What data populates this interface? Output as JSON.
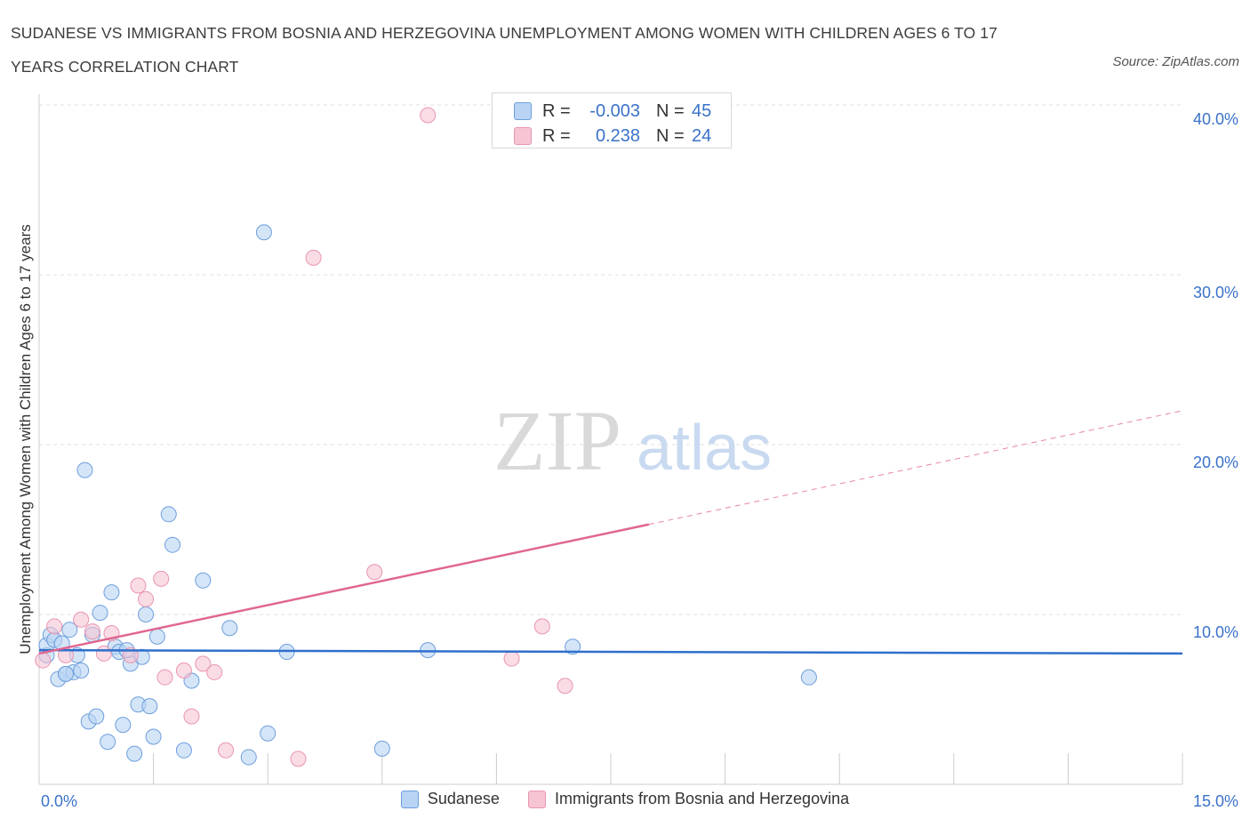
{
  "title_line1": "SUDANESE VS IMMIGRANTS FROM BOSNIA AND HERZEGOVINA UNEMPLOYMENT AMONG WOMEN WITH CHILDREN AGES 6 TO 17",
  "title_line2": "YEARS CORRELATION CHART",
  "source": "Source: ZipAtlas.com",
  "watermark": {
    "zip": "ZIP",
    "atlas": "atlas"
  },
  "colors": {
    "blue_fill": "#b9d3f4",
    "blue_stroke": "#6c9fdc",
    "blue_line": "#2f6fcc",
    "pink_fill": "#f7c4d3",
    "pink_stroke": "#e896b0",
    "pink_line": "#e06690",
    "axis_label": "#3a72c8",
    "grid": "#e2e2e2"
  },
  "stats": [
    {
      "r_label": "R =",
      "r_value": "-0.003",
      "n_label": "N =",
      "n_value": "45",
      "color": "blue"
    },
    {
      "r_label": "R =",
      "r_value": "0.238",
      "n_label": "N =",
      "n_value": "24",
      "color": "pink"
    }
  ],
  "legend": [
    "Sudanese",
    "Immigrants from Bosnia and Herzegovina"
  ],
  "chart_data": {
    "type": "scatter",
    "xlabel": "",
    "ylabel": "Unemployment Among Women with Children Ages 6 to 17 years",
    "xlim": [
      0,
      15
    ],
    "ylim": [
      0,
      40
    ],
    "x_tick_labels": [
      "0.0%",
      "15.0%"
    ],
    "y_ticks": [
      10,
      20,
      30,
      40
    ],
    "y_tick_labels": [
      "10.0%",
      "20.0%",
      "30.0%",
      "40.0%"
    ],
    "series": [
      {
        "name": "Sudanese",
        "color": "blue",
        "points": [
          [
            0.1,
            7.6
          ],
          [
            0.1,
            8.2
          ],
          [
            0.15,
            8.8
          ],
          [
            0.2,
            8.5
          ],
          [
            0.25,
            6.2
          ],
          [
            0.3,
            8.3
          ],
          [
            0.35,
            6.5
          ],
          [
            0.4,
            9.1
          ],
          [
            0.45,
            6.6
          ],
          [
            0.5,
            7.6
          ],
          [
            0.55,
            6.7
          ],
          [
            0.6,
            18.5
          ],
          [
            0.65,
            3.7
          ],
          [
            0.75,
            4.0
          ],
          [
            0.7,
            8.8
          ],
          [
            0.8,
            10.1
          ],
          [
            0.9,
            2.5
          ],
          [
            0.95,
            11.3
          ],
          [
            1.0,
            8.1
          ],
          [
            1.05,
            7.8
          ],
          [
            1.1,
            3.5
          ],
          [
            1.2,
            7.1
          ],
          [
            1.25,
            1.8
          ],
          [
            1.3,
            4.7
          ],
          [
            1.35,
            7.5
          ],
          [
            1.4,
            10.0
          ],
          [
            1.45,
            4.6
          ],
          [
            1.5,
            2.8
          ],
          [
            1.55,
            8.7
          ],
          [
            1.7,
            15.9
          ],
          [
            1.75,
            14.1
          ],
          [
            1.9,
            2.0
          ],
          [
            2.0,
            6.1
          ],
          [
            2.15,
            12.0
          ],
          [
            2.5,
            9.2
          ],
          [
            2.75,
            1.6
          ],
          [
            2.95,
            32.5
          ],
          [
            3.0,
            3.0
          ],
          [
            3.25,
            7.8
          ],
          [
            4.5,
            2.1
          ],
          [
            5.1,
            7.9
          ],
          [
            7.0,
            8.1
          ],
          [
            10.1,
            6.3
          ],
          [
            1.15,
            7.9
          ],
          [
            0.35,
            6.5
          ]
        ]
      },
      {
        "name": "Immigrants from Bosnia and Herzegovina",
        "color": "pink",
        "points": [
          [
            0.05,
            7.3
          ],
          [
            0.2,
            9.3
          ],
          [
            0.35,
            7.6
          ],
          [
            0.55,
            9.7
          ],
          [
            0.7,
            9.0
          ],
          [
            0.85,
            7.7
          ],
          [
            0.95,
            8.9
          ],
          [
            1.2,
            7.6
          ],
          [
            1.3,
            11.7
          ],
          [
            1.4,
            10.9
          ],
          [
            1.6,
            12.1
          ],
          [
            1.65,
            6.3
          ],
          [
            1.9,
            6.7
          ],
          [
            2.0,
            4.0
          ],
          [
            2.15,
            7.1
          ],
          [
            2.3,
            6.6
          ],
          [
            2.45,
            2.0
          ],
          [
            3.4,
            1.5
          ],
          [
            3.6,
            31.0
          ],
          [
            4.4,
            12.5
          ],
          [
            5.1,
            39.4
          ],
          [
            6.2,
            7.4
          ],
          [
            6.6,
            9.3
          ],
          [
            6.9,
            5.8
          ]
        ]
      }
    ],
    "trendlines": [
      {
        "series": "Sudanese",
        "from": [
          0,
          7.9
        ],
        "to": [
          15,
          7.7
        ],
        "style": "solid"
      },
      {
        "series": "Immigrants from Bosnia and Herzegovina",
        "from": [
          0,
          7.7
        ],
        "to": [
          8.0,
          15.3
        ],
        "style": "solid"
      },
      {
        "series": "Immigrants from Bosnia and Herzegovina",
        "from": [
          8.0,
          15.3
        ],
        "to": [
          15,
          22.0
        ],
        "style": "dashed"
      }
    ]
  }
}
